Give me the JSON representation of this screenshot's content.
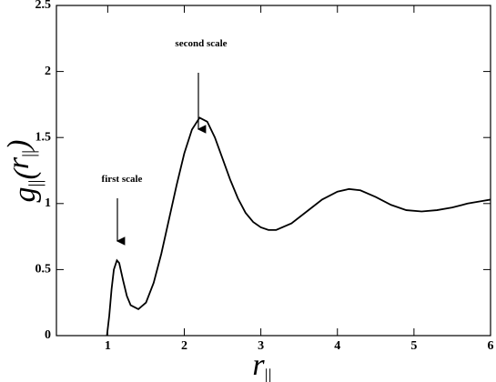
{
  "chart_data": {
    "type": "line",
    "xlabel_parts": [
      "r",
      "||"
    ],
    "ylabel_parts": [
      "g",
      "||",
      "(",
      "r",
      "||",
      ")"
    ],
    "annotations": [
      "first scale",
      "second scale"
    ],
    "x": [
      0.99,
      1.02,
      1.05,
      1.08,
      1.12,
      1.15,
      1.2,
      1.25,
      1.3,
      1.4,
      1.5,
      1.6,
      1.7,
      1.8,
      1.9,
      2.0,
      2.1,
      2.2,
      2.3,
      2.4,
      2.5,
      2.6,
      2.7,
      2.8,
      2.9,
      3.0,
      3.1,
      3.2,
      3.4,
      3.6,
      3.8,
      4.0,
      4.15,
      4.3,
      4.5,
      4.7,
      4.9,
      5.1,
      5.3,
      5.5,
      5.7,
      5.9,
      6.0
    ],
    "values": [
      0,
      0.15,
      0.35,
      0.5,
      0.57,
      0.55,
      0.42,
      0.3,
      0.23,
      0.2,
      0.25,
      0.4,
      0.62,
      0.88,
      1.14,
      1.38,
      1.56,
      1.65,
      1.62,
      1.5,
      1.34,
      1.18,
      1.04,
      0.93,
      0.86,
      0.82,
      0.8,
      0.8,
      0.85,
      0.94,
      1.03,
      1.09,
      1.11,
      1.1,
      1.05,
      0.99,
      0.95,
      0.94,
      0.95,
      0.97,
      1.0,
      1.02,
      1.03
    ],
    "color": "#000000",
    "xlim": [
      0.33,
      6
    ],
    "xticks": [
      1,
      2,
      3,
      4,
      5,
      6
    ],
    "ylim": [
      0,
      2.5
    ],
    "yticks": [
      0,
      0.5,
      1,
      1.5,
      2,
      2.5
    ]
  }
}
